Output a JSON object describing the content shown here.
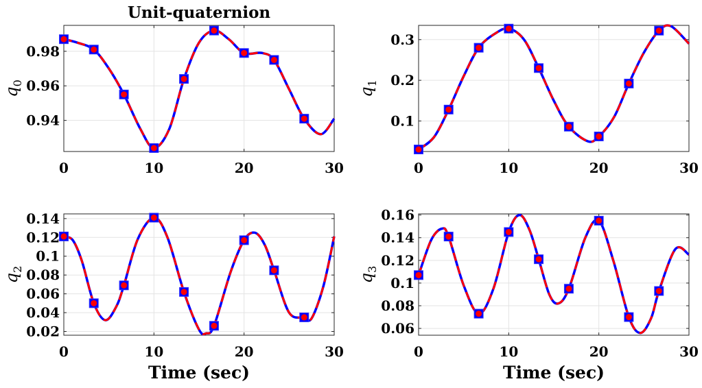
{
  "figure_title": "Unit-quaternion",
  "colors": {
    "series_1": "#0000ff",
    "series_2": "#ff0000",
    "marker_face": "#ff0000",
    "marker_edge": "#3333ff"
  },
  "chart_data": [
    {
      "type": "line",
      "title": "Unit-quaternion",
      "ylabel_symbol": "q",
      "ylabel_subscript": "0",
      "xlabel": "",
      "xlim": [
        0,
        30
      ],
      "ylim": [
        0.922,
        0.995
      ],
      "xticks": [
        0,
        10,
        20,
        30
      ],
      "xtick_labels": [
        "0",
        "10",
        "20",
        "30"
      ],
      "yticks": [
        0.94,
        0.96,
        0.98
      ],
      "ytick_labels": [
        "0.94",
        "0.96",
        "0.98"
      ],
      "grid": true,
      "x": [
        0,
        1.5,
        3.33,
        5,
        6.67,
        8.5,
        10,
        11.7,
        13.33,
        15,
        16.67,
        18.3,
        20,
        22,
        23.33,
        25,
        26.67,
        28.5,
        30
      ],
      "values": [
        0.987,
        0.985,
        0.981,
        0.97,
        0.955,
        0.935,
        0.924,
        0.935,
        0.964,
        0.985,
        0.992,
        0.987,
        0.979,
        0.979,
        0.975,
        0.958,
        0.941,
        0.932,
        0.941
      ],
      "markers_x": [
        0,
        3.33,
        6.67,
        10,
        13.33,
        16.67,
        20,
        23.33,
        26.67
      ],
      "markers_y": [
        0.987,
        0.981,
        0.955,
        0.924,
        0.964,
        0.992,
        0.979,
        0.975,
        0.941
      ]
    },
    {
      "type": "line",
      "title": "",
      "ylabel_symbol": "q",
      "ylabel_subscript": "1",
      "xlabel": "",
      "xlim": [
        0,
        30
      ],
      "ylim": [
        0.025,
        0.335
      ],
      "xticks": [
        0,
        10,
        20,
        30
      ],
      "xtick_labels": [
        "0",
        "10",
        "20",
        "30"
      ],
      "yticks": [
        0.1,
        0.2,
        0.3
      ],
      "ytick_labels": [
        "0.1",
        "0.2",
        "0.3"
      ],
      "grid": true,
      "x": [
        0,
        1.7,
        3.33,
        5,
        6.67,
        8.5,
        10,
        11.7,
        13.33,
        15,
        16.67,
        18.8,
        20,
        21.7,
        23.33,
        25,
        26.67,
        28,
        30
      ],
      "values": [
        0.03,
        0.06,
        0.128,
        0.21,
        0.28,
        0.315,
        0.327,
        0.3,
        0.23,
        0.15,
        0.086,
        0.05,
        0.062,
        0.11,
        0.192,
        0.268,
        0.322,
        0.333,
        0.29
      ],
      "markers_x": [
        0,
        3.33,
        6.67,
        10,
        13.33,
        16.67,
        20,
        23.33,
        26.67
      ],
      "markers_y": [
        0.03,
        0.128,
        0.28,
        0.327,
        0.23,
        0.086,
        0.062,
        0.192,
        0.322
      ]
    },
    {
      "type": "line",
      "title": "",
      "ylabel_symbol": "q",
      "ylabel_subscript": "2",
      "xlabel": "Time (sec)",
      "xlim": [
        0,
        30
      ],
      "ylim": [
        0.016,
        0.145
      ],
      "xticks": [
        0,
        10,
        20,
        30
      ],
      "xtick_labels": [
        "0",
        "10",
        "20",
        "30"
      ],
      "yticks": [
        0.02,
        0.04,
        0.06,
        0.08,
        0.1,
        0.12,
        0.14
      ],
      "ytick_labels": [
        "0.02",
        "0.04",
        "0.06",
        "0.08",
        "0.1",
        "0.12",
        "0.14"
      ],
      "grid": true,
      "x": [
        0,
        1,
        2,
        3.33,
        4.6,
        5.8,
        6.67,
        8.2,
        10,
        11.5,
        13.33,
        15,
        15.8,
        16.67,
        18.5,
        20,
        21.2,
        22.3,
        23.33,
        25,
        26.67,
        27.5,
        28.8,
        30
      ],
      "values": [
        0.121,
        0.117,
        0.095,
        0.05,
        0.032,
        0.046,
        0.069,
        0.118,
        0.141,
        0.12,
        0.062,
        0.022,
        0.018,
        0.026,
        0.083,
        0.117,
        0.125,
        0.112,
        0.085,
        0.04,
        0.035,
        0.034,
        0.068,
        0.121
      ],
      "markers_x": [
        0,
        3.33,
        6.67,
        10,
        13.33,
        16.67,
        20,
        23.33,
        26.67
      ],
      "markers_y": [
        0.121,
        0.05,
        0.069,
        0.141,
        0.062,
        0.026,
        0.117,
        0.085,
        0.035
      ]
    },
    {
      "type": "line",
      "title": "",
      "ylabel_symbol": "q",
      "ylabel_subscript": "3",
      "xlabel": "Time (sec)",
      "xlim": [
        0,
        30
      ],
      "ylim": [
        0.054,
        0.161
      ],
      "xticks": [
        0,
        10,
        20,
        30
      ],
      "xtick_labels": [
        "0",
        "10",
        "20",
        "30"
      ],
      "yticks": [
        0.06,
        0.08,
        0.1,
        0.12,
        0.14,
        0.16
      ],
      "ytick_labels": [
        "0.06",
        "0.08",
        "0.1",
        "0.12",
        "0.14",
        "0.16"
      ],
      "grid": true,
      "x": [
        0,
        1.4,
        2.6,
        3.33,
        5,
        6.67,
        8.3,
        10,
        11.2,
        12.3,
        13.33,
        14.5,
        15.5,
        16.67,
        18.5,
        20,
        21.6,
        23.33,
        24.6,
        25.8,
        26.67,
        28.5,
        30
      ],
      "values": [
        0.107,
        0.138,
        0.148,
        0.141,
        0.098,
        0.073,
        0.095,
        0.145,
        0.16,
        0.147,
        0.121,
        0.09,
        0.082,
        0.095,
        0.14,
        0.155,
        0.12,
        0.07,
        0.056,
        0.069,
        0.093,
        0.13,
        0.125
      ],
      "markers_x": [
        0,
        3.33,
        6.67,
        10,
        13.33,
        16.67,
        20,
        23.33,
        26.67
      ],
      "markers_y": [
        0.107,
        0.141,
        0.073,
        0.145,
        0.121,
        0.095,
        0.155,
        0.07,
        0.093
      ]
    }
  ]
}
